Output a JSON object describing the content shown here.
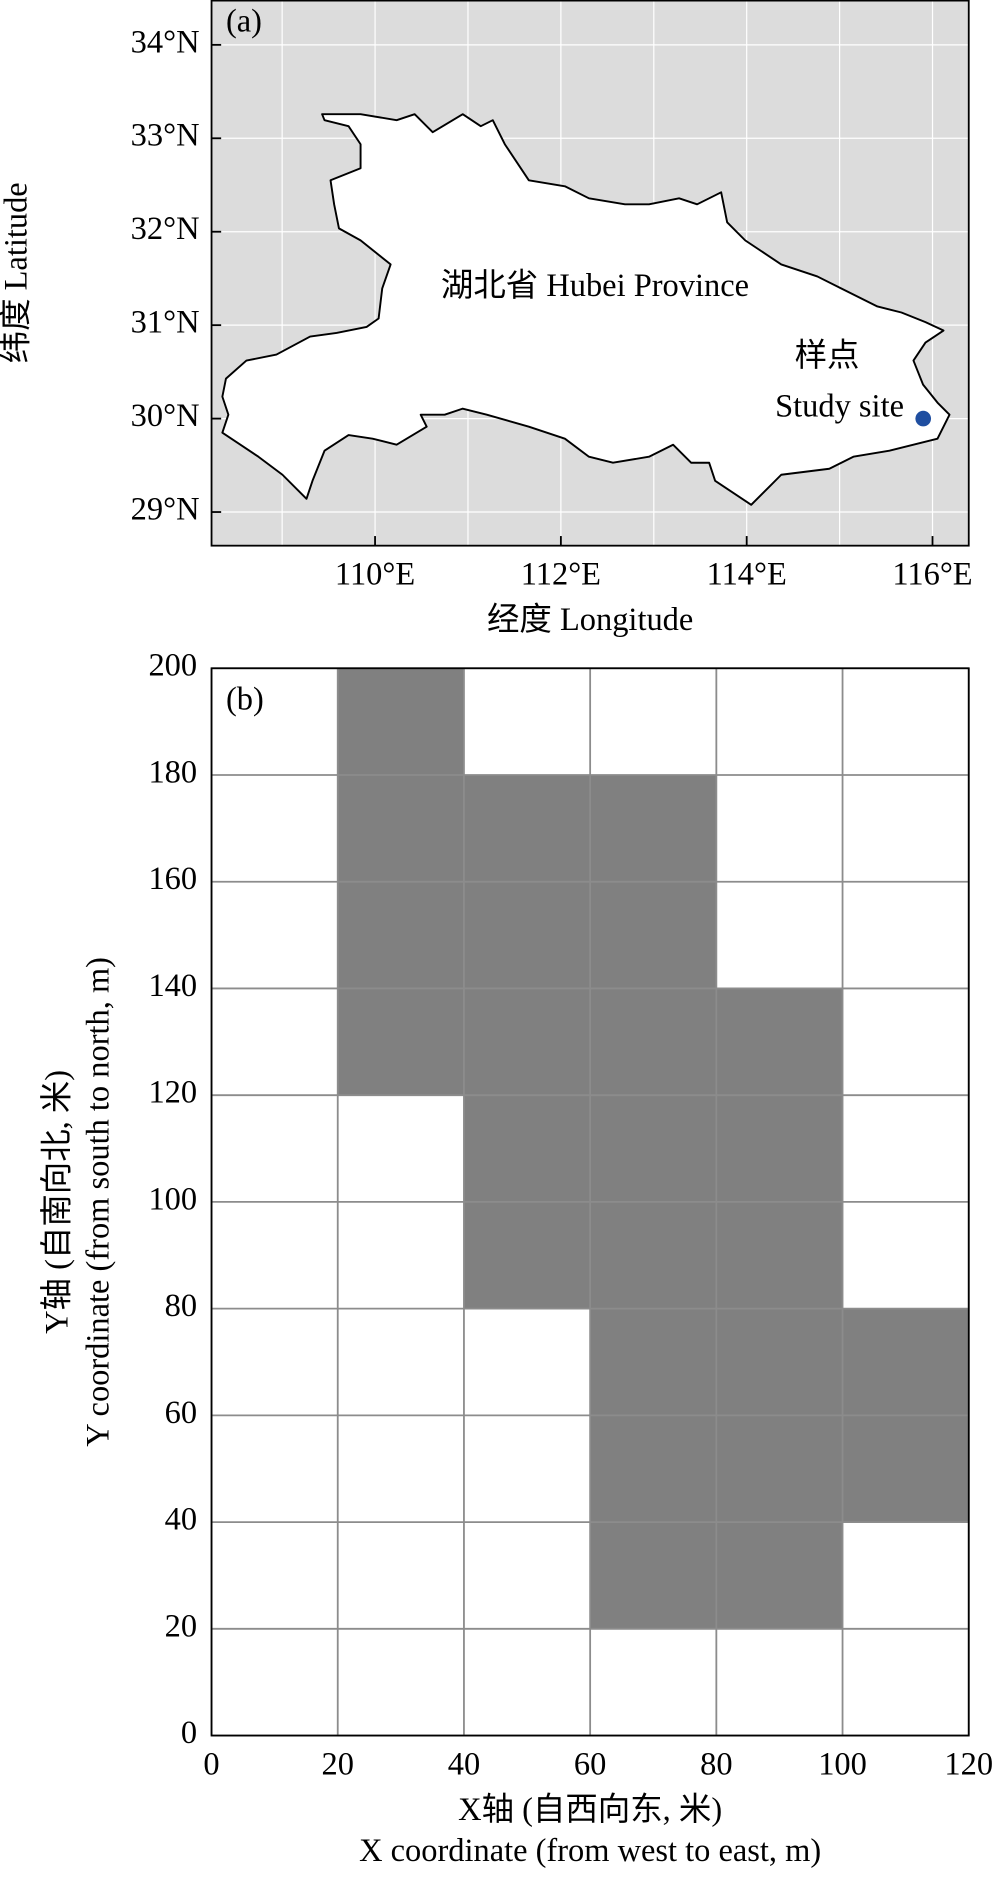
{
  "chart_data": [
    {
      "type": "map",
      "panel_label": "(a)",
      "xlabel": "经度 Longitude",
      "ylabel": "纬度 Latitude",
      "xlim": [
        108.24,
        116.39
      ],
      "ylim": [
        28.64,
        34.48
      ],
      "xticks": [
        {
          "value": 110,
          "label": "110°E"
        },
        {
          "value": 112,
          "label": "112°E"
        },
        {
          "value": 114,
          "label": "114°E"
        },
        {
          "value": 116,
          "label": "116°E"
        }
      ],
      "yticks": [
        {
          "value": 29,
          "label": "29°N"
        },
        {
          "value": 30,
          "label": "30°N"
        },
        {
          "value": 31,
          "label": "31°N"
        },
        {
          "value": 32,
          "label": "32°N"
        },
        {
          "value": 33,
          "label": "33°N"
        },
        {
          "value": 34,
          "label": "34°N"
        }
      ],
      "xgrid": [
        109,
        110,
        111,
        112,
        113,
        114,
        115,
        116
      ],
      "ygrid": [
        29,
        30,
        31,
        32,
        33,
        34
      ],
      "background": "#dcdcdc",
      "region_label": "湖北省 Hubei Province",
      "points": [
        {
          "x": 115.9,
          "y": 30.0,
          "color": "#1f4ea0",
          "label": [
            "样点",
            "Study site"
          ]
        }
      ]
    },
    {
      "type": "heatmap",
      "panel_label": "(b)",
      "xlabel": [
        "X轴 (自西向东, 米)",
        "X coordinate (from west to east, m)"
      ],
      "ylabel": [
        "Y轴 (自南向北, 米)",
        "Y coordinate (from south to north, m)"
      ],
      "xlim": [
        0,
        120
      ],
      "ylim": [
        0,
        200
      ],
      "xticks": [
        0,
        20,
        40,
        60,
        80,
        100,
        120
      ],
      "yticks": [
        0,
        20,
        40,
        60,
        80,
        100,
        120,
        140,
        160,
        180,
        200
      ],
      "colors": [
        "#ffffff",
        "#808080"
      ],
      "z": [
        [
          0,
          0,
          0,
          0,
          0,
          0
        ],
        [
          0,
          0,
          0,
          1,
          1,
          0
        ],
        [
          0,
          0,
          0,
          1,
          1,
          1
        ],
        [
          0,
          0,
          0,
          1,
          1,
          1
        ],
        [
          0,
          0,
          1,
          1,
          1,
          0
        ],
        [
          0,
          0,
          1,
          1,
          1,
          0
        ],
        [
          0,
          1,
          1,
          1,
          1,
          0
        ],
        [
          0,
          1,
          1,
          1,
          0,
          0
        ],
        [
          0,
          1,
          1,
          1,
          0,
          0
        ],
        [
          0,
          1,
          0,
          0,
          0,
          0
        ]
      ]
    }
  ]
}
